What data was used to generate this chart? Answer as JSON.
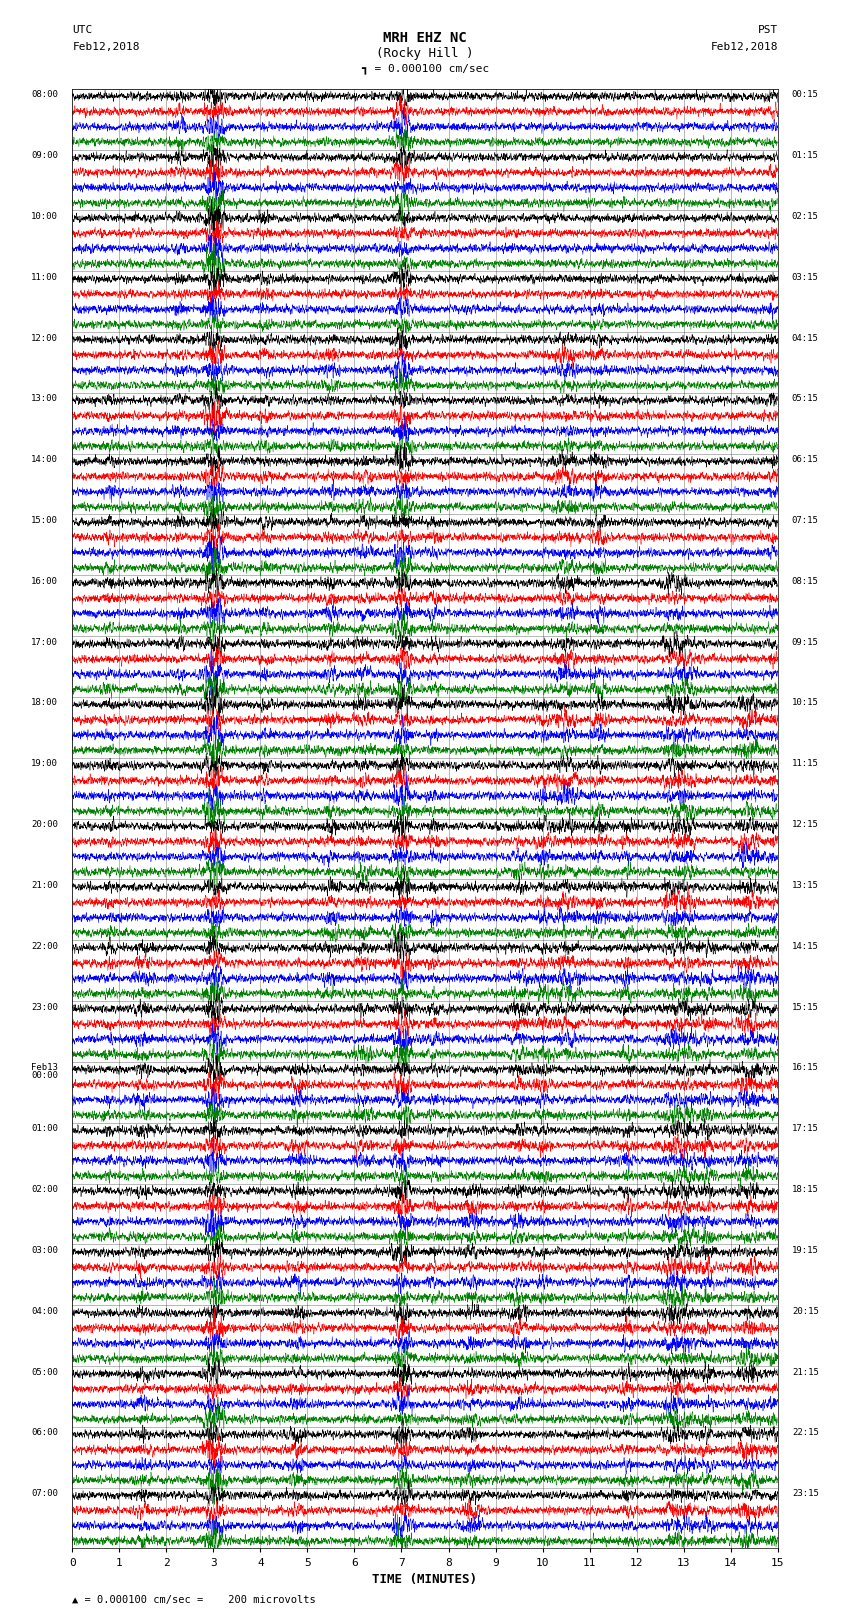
{
  "title_line1": "MRH EHZ NC",
  "title_line2": "(Rocky Hill )",
  "scale_text": "= 0.000100 cm/sec",
  "bottom_text": "= 0.000100 cm/sec =    200 microvolts",
  "left_label": "UTC",
  "right_label": "PST",
  "left_date": "Feb12,2018",
  "right_date": "Feb12,2018",
  "xlabel": "TIME (MINUTES)",
  "utc_times": [
    "08:00",
    "09:00",
    "10:00",
    "11:00",
    "12:00",
    "13:00",
    "14:00",
    "15:00",
    "16:00",
    "17:00",
    "18:00",
    "19:00",
    "20:00",
    "21:00",
    "22:00",
    "23:00",
    "Feb13\n00:00",
    "01:00",
    "02:00",
    "03:00",
    "04:00",
    "05:00",
    "06:00",
    "07:00"
  ],
  "pst_times": [
    "00:15",
    "01:15",
    "02:15",
    "03:15",
    "04:15",
    "05:15",
    "06:15",
    "07:15",
    "08:15",
    "09:15",
    "10:15",
    "11:15",
    "12:15",
    "13:15",
    "14:15",
    "15:15",
    "16:15",
    "17:15",
    "18:15",
    "19:15",
    "20:15",
    "21:15",
    "22:15",
    "23:15"
  ],
  "colors": [
    "black",
    "red",
    "blue",
    "green"
  ],
  "n_hours": 24,
  "traces_per_hour": 4,
  "x_min": 0,
  "x_max": 15,
  "x_ticks": [
    0,
    1,
    2,
    3,
    4,
    5,
    6,
    7,
    8,
    9,
    10,
    11,
    12,
    13,
    14,
    15
  ],
  "background_color": "white",
  "noise_scale": 0.12,
  "seed": 42,
  "lw": 0.35
}
